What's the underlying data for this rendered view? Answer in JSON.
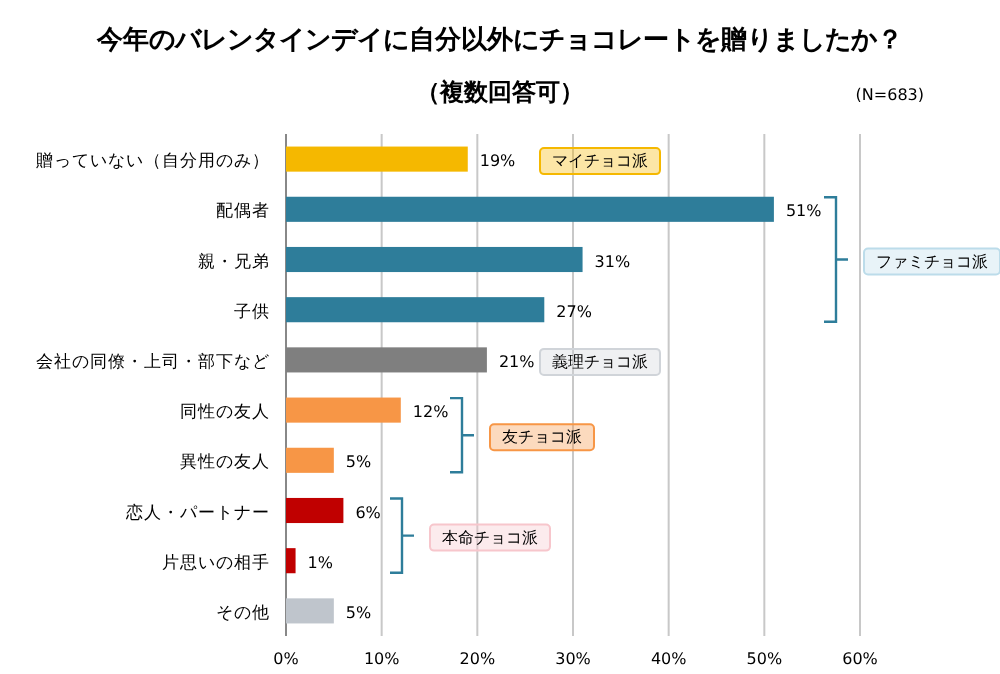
{
  "chart_data": {
    "type": "bar",
    "orientation": "horizontal",
    "title": "今年のバレンタインデイに自分以外にチョコレートを贈りましたか？",
    "subtitle": "（複数回答可）",
    "categories": [
      "贈っていない（自分用のみ）",
      "配偶者",
      "親・兄弟",
      "子供",
      "会社の同僚・上司・部下など",
      "同性の友人",
      "異性の友人",
      "恋人・パートナー",
      "片思いの相手",
      "その他"
    ],
    "values": [
      19,
      51,
      31,
      27,
      21,
      12,
      5,
      6,
      1,
      5
    ],
    "value_labels": [
      "19%",
      "51%",
      "31%",
      "27%",
      "21%",
      "12%",
      "5%",
      "6%",
      "1%",
      "5%"
    ],
    "colors": [
      "#f5b800",
      "#2e7d9a",
      "#2e7d9a",
      "#2e7d9a",
      "#7f7f7f",
      "#f79646",
      "#f79646",
      "#c00000",
      "#c00000",
      "#bfc5cc"
    ],
    "xlim": [
      0,
      60
    ],
    "xticks": [
      {
        "value": 0,
        "label": "0%"
      },
      {
        "value": 10,
        "label": "10%"
      },
      {
        "value": 20,
        "label": "20%"
      },
      {
        "value": 30,
        "label": "30%"
      },
      {
        "value": 40,
        "label": "40%"
      },
      {
        "value": 50,
        "label": "50%"
      },
      {
        "value": 60,
        "label": "60%"
      }
    ],
    "grid": "x",
    "annotations": [
      "(N=683)",
      "マイチョコ派",
      "ファミチョコ派",
      "義理チョコ派",
      "友チョコ派",
      "本命チョコ派"
    ]
  }
}
